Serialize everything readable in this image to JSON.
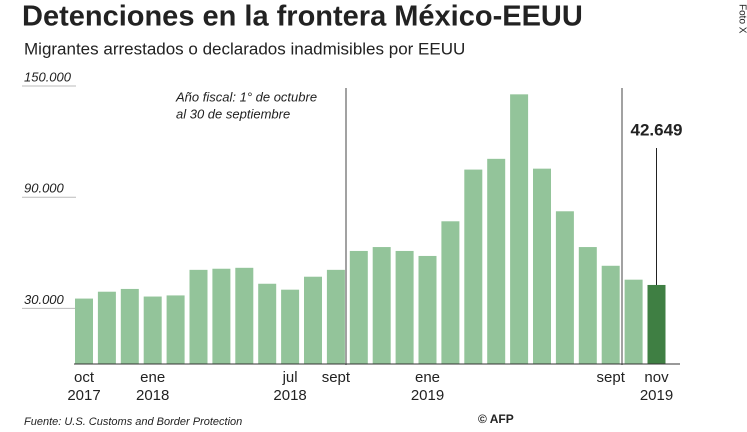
{
  "chart_data": {
    "type": "bar",
    "title": "Detenciones en la frontera México-EEUU",
    "subtitle": "Migrantes arrestados o declarados inadmisibles por EEUU",
    "annotation": [
      "Año fiscal: 1° de octubre",
      "al 30 de septiembre"
    ],
    "source": "Fuente: U.S. Customs and Border Protection",
    "credit": "© AFP",
    "side_credit": "Foto X",
    "categories": [
      "oct",
      null,
      null,
      "ene",
      null,
      null,
      null,
      null,
      null,
      "jul",
      null,
      "sept",
      null,
      null,
      null,
      "ene",
      null,
      null,
      null,
      null,
      null,
      null,
      null,
      "sept",
      null,
      "nov"
    ],
    "category_years": [
      "2017",
      null,
      null,
      "2018",
      null,
      null,
      null,
      null,
      null,
      "2018",
      null,
      null,
      null,
      null,
      null,
      "2019",
      null,
      null,
      null,
      null,
      null,
      null,
      null,
      null,
      null,
      "2019"
    ],
    "values": [
      35300,
      39000,
      40500,
      36400,
      37000,
      50800,
      51400,
      51900,
      43300,
      40100,
      47100,
      50800,
      61000,
      63100,
      61000,
      58300,
      77000,
      104900,
      110700,
      145500,
      105400,
      82400,
      63100,
      53000,
      45500,
      42649
    ],
    "value_labels": [
      null,
      null,
      null,
      null,
      null,
      null,
      null,
      null,
      null,
      null,
      null,
      null,
      null,
      null,
      null,
      null,
      null,
      null,
      null,
      null,
      null,
      null,
      null,
      null,
      null,
      "42.649"
    ],
    "color": "#93c49a",
    "highlight_color": "#3f7f43",
    "ylim": [
      0,
      150000
    ],
    "yticks": [
      {
        "value": 30000,
        "label": "30.000"
      },
      {
        "value": 90000,
        "label": "90.000"
      },
      {
        "value": 150000,
        "label": "150.000"
      }
    ]
  }
}
